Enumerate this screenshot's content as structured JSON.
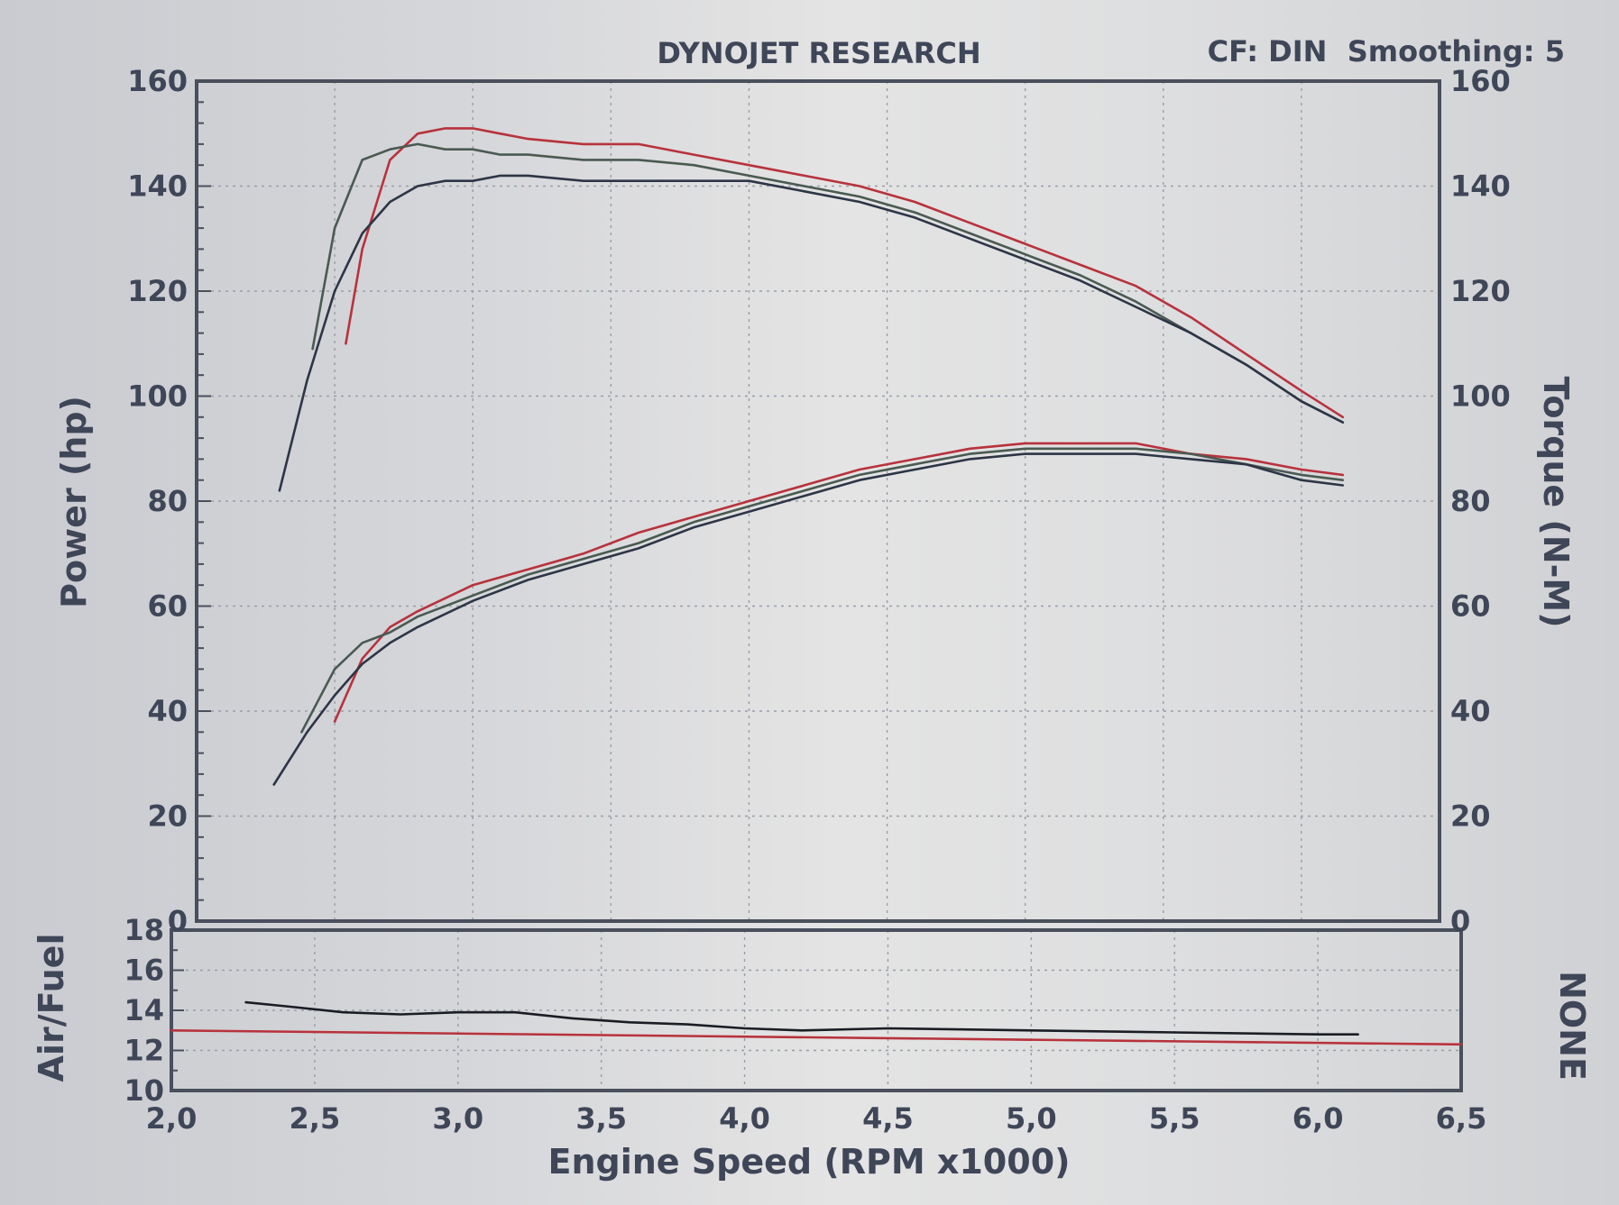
{
  "chart_data": [
    {
      "type": "line",
      "title": "DYNOJET RESEARCH",
      "header_right": "CF: DIN  Smoothing: 5",
      "xlabel": "Engine Speed (RPM x1000)",
      "ylabel": "Power (hp)",
      "y2label": "Torque (N-M)",
      "xlim": [
        2.0,
        6.5
      ],
      "ylim": [
        0,
        160
      ],
      "y2lim": [
        0,
        160
      ],
      "xticks": [
        "2,0",
        "2,5",
        "3,0",
        "3,5",
        "4,0",
        "4,5",
        "5,0",
        "5,5",
        "6,0",
        "6,5"
      ],
      "yticks": [
        "0",
        "20",
        "40",
        "60",
        "80",
        "100",
        "120",
        "140",
        "160"
      ],
      "y2ticks": [
        "0",
        "20",
        "40",
        "60",
        "80",
        "100",
        "120",
        "140",
        "160"
      ],
      "grid": true,
      "series": [
        {
          "kind": "torque",
          "color": "#b8323c",
          "x": [
            2.54,
            2.6,
            2.7,
            2.8,
            2.9,
            3.0,
            3.1,
            3.2,
            3.4,
            3.6,
            3.8,
            4.0,
            4.2,
            4.4,
            4.6,
            4.8,
            5.0,
            5.2,
            5.4,
            5.6,
            5.8,
            6.0,
            6.15
          ],
          "y": [
            110,
            128,
            145,
            150,
            151,
            151,
            150,
            149,
            148,
            148,
            146,
            144,
            142,
            140,
            137,
            133,
            129,
            125,
            121,
            115,
            108,
            101,
            96
          ]
        },
        {
          "kind": "torque",
          "color": "#4a5a52",
          "x": [
            2.42,
            2.5,
            2.6,
            2.7,
            2.8,
            2.9,
            3.0,
            3.1,
            3.2,
            3.4,
            3.6,
            3.8,
            4.0,
            4.2,
            4.4,
            4.6,
            4.8,
            5.0,
            5.2,
            5.4,
            5.6,
            5.8,
            6.0,
            6.15
          ],
          "y": [
            109,
            132,
            145,
            147,
            148,
            147,
            147,
            146,
            146,
            145,
            145,
            144,
            142,
            140,
            138,
            135,
            131,
            127,
            123,
            118,
            112,
            106,
            99,
            95
          ]
        },
        {
          "kind": "torque",
          "color": "#2d3546",
          "x": [
            2.3,
            2.4,
            2.5,
            2.6,
            2.7,
            2.8,
            2.9,
            3.0,
            3.1,
            3.2,
            3.4,
            3.6,
            3.8,
            4.0,
            4.2,
            4.4,
            4.6,
            4.8,
            5.0,
            5.2,
            5.4,
            5.6,
            5.8,
            6.0,
            6.15
          ],
          "y": [
            82,
            103,
            120,
            131,
            137,
            140,
            141,
            141,
            142,
            142,
            141,
            141,
            141,
            141,
            139,
            137,
            134,
            130,
            126,
            122,
            117,
            112,
            106,
            99,
            95
          ]
        },
        {
          "kind": "power",
          "color": "#b8323c",
          "x": [
            2.5,
            2.6,
            2.7,
            2.8,
            3.0,
            3.2,
            3.4,
            3.6,
            3.8,
            4.0,
            4.2,
            4.4,
            4.6,
            4.8,
            5.0,
            5.2,
            5.4,
            5.6,
            5.8,
            6.0,
            6.15
          ],
          "y": [
            38,
            50,
            56,
            59,
            64,
            67,
            70,
            74,
            77,
            80,
            83,
            86,
            88,
            90,
            91,
            91,
            91,
            89,
            88,
            86,
            85
          ]
        },
        {
          "kind": "power",
          "color": "#4a5a52",
          "x": [
            2.38,
            2.5,
            2.6,
            2.7,
            2.8,
            3.0,
            3.2,
            3.4,
            3.6,
            3.8,
            4.0,
            4.2,
            4.4,
            4.6,
            4.8,
            5.0,
            5.2,
            5.4,
            5.6,
            5.8,
            6.0,
            6.15
          ],
          "y": [
            36,
            48,
            53,
            55,
            58,
            62,
            66,
            69,
            72,
            76,
            79,
            82,
            85,
            87,
            89,
            90,
            90,
            90,
            89,
            87,
            85,
            84
          ]
        },
        {
          "kind": "power",
          "color": "#2d3546",
          "x": [
            2.28,
            2.4,
            2.5,
            2.6,
            2.7,
            2.8,
            3.0,
            3.2,
            3.4,
            3.6,
            3.8,
            4.0,
            4.2,
            4.4,
            4.6,
            4.8,
            5.0,
            5.2,
            5.4,
            5.6,
            5.8,
            6.0,
            6.15
          ],
          "y": [
            26,
            36,
            43,
            49,
            53,
            56,
            61,
            65,
            68,
            71,
            75,
            78,
            81,
            84,
            86,
            88,
            89,
            89,
            89,
            88,
            87,
            84,
            83
          ]
        }
      ]
    },
    {
      "type": "line",
      "ylabel": "Air/Fuel",
      "y2label": "NONE",
      "xlim": [
        2.0,
        6.5
      ],
      "ylim": [
        10,
        18
      ],
      "xticks": [
        "2,0",
        "2,5",
        "3,0",
        "3,5",
        "4,0",
        "4,5",
        "5,0",
        "5,5",
        "6,0",
        "6,5"
      ],
      "yticks": [
        "10",
        "12",
        "14",
        "16",
        "18"
      ],
      "grid": true,
      "series": [
        {
          "color": "#1a1d24",
          "x": [
            2.26,
            2.4,
            2.6,
            2.8,
            3.0,
            3.2,
            3.4,
            3.6,
            3.8,
            4.0,
            4.2,
            4.5,
            5.0,
            5.5,
            6.0,
            6.14
          ],
          "y": [
            14.4,
            14.2,
            13.9,
            13.8,
            13.9,
            13.9,
            13.6,
            13.4,
            13.3,
            13.1,
            13.0,
            13.1,
            13.0,
            12.9,
            12.8,
            12.8
          ]
        },
        {
          "color": "#b8323c",
          "x": [
            2.0,
            6.5
          ],
          "y": [
            13.0,
            12.3
          ]
        }
      ]
    }
  ]
}
